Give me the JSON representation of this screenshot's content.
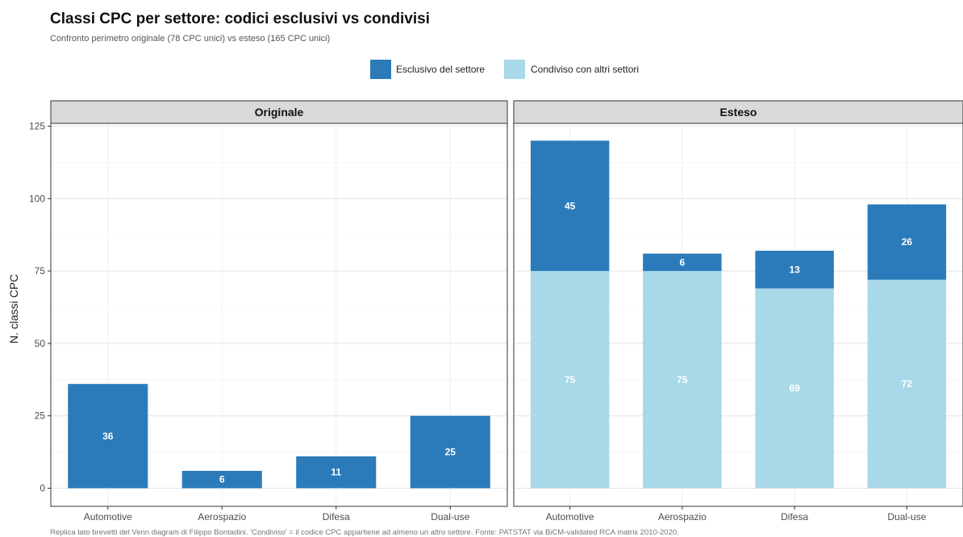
{
  "chart_data": {
    "type": "bar",
    "stacked": true,
    "title": "Classi CPC per settore: codici esclusivi vs condivisi",
    "subtitle": "Confronto perimetro originale (78 CPC unici) vs esteso (165 CPC unici)",
    "ylabel": "N. classi CPC",
    "xlabel": "",
    "ylim": [
      0,
      125
    ],
    "yticks": [
      0,
      25,
      50,
      75,
      100,
      125
    ],
    "grid": true,
    "legend_position": "top",
    "categories": [
      "Automotive",
      "Aerospazio",
      "Difesa",
      "Dual-use"
    ],
    "legend": [
      {
        "name": "Esclusivo del settore",
        "color": "#2b7bba"
      },
      {
        "name": "Condiviso con altri settori",
        "color": "#a9d8e8"
      }
    ],
    "panels": [
      {
        "name": "Originale",
        "series": [
          {
            "name": "Condiviso con altri settori",
            "color": "#a9d8e8",
            "values": [
              0,
              0,
              0,
              0
            ]
          },
          {
            "name": "Esclusivo del settore",
            "color": "#2b7bba",
            "values": [
              36,
              6,
              11,
              25
            ]
          }
        ]
      },
      {
        "name": "Esteso",
        "series": [
          {
            "name": "Condiviso con altri settori",
            "color": "#a9d8e8",
            "values": [
              75,
              75,
              69,
              72
            ]
          },
          {
            "name": "Esclusivo del settore",
            "color": "#2b7bba",
            "values": [
              45,
              6,
              13,
              26
            ]
          }
        ]
      }
    ],
    "caption": "Replica lato brevetti del Venn diagram di Filippo Bontadini. 'Condiviso' = il codice CPC appartiene ad almeno un altro settore. Fonte: PATSTAT via BiCM-validated RCA matrix 2010-2020."
  }
}
